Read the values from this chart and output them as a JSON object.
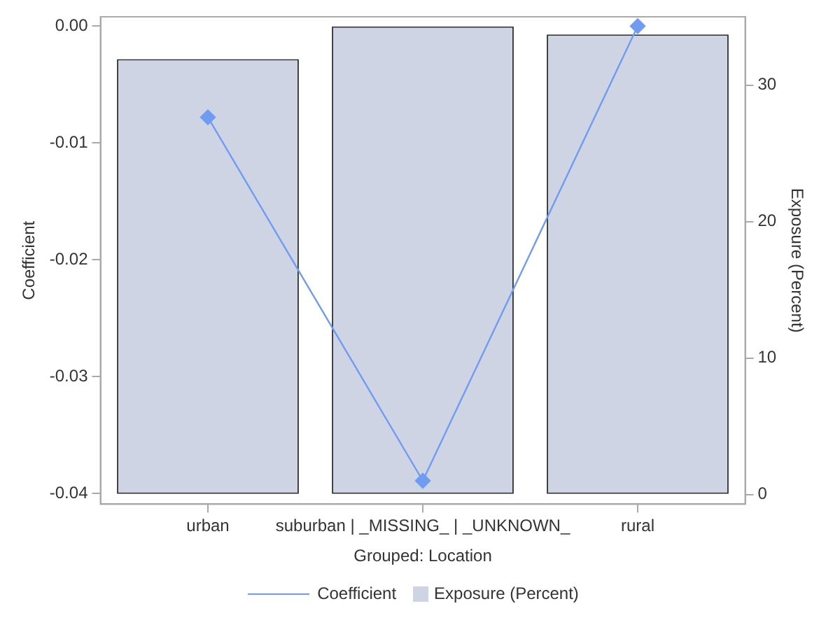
{
  "chart_data": {
    "type": "bar",
    "xlabel": "Grouped: Location",
    "ylabel": "Coefficient",
    "y2label": "Exposure (Percent)",
    "categories": [
      "urban",
      "suburban | _MISSING_ | _UNKNOWN_",
      "rural"
    ],
    "series": [
      {
        "name": "Coefficient",
        "type": "line",
        "color": "#6f9cf0",
        "values": [
          -0.0078,
          -0.0389,
          0.0
        ],
        "marker": "diamond"
      },
      {
        "name": "Exposure (Percent)",
        "type": "bar",
        "axis": "y2",
        "color": "#cfd4e4",
        "values": [
          31.9,
          34.3,
          33.7
        ]
      }
    ],
    "ylim": [
      -0.0409,
      0.0008
    ],
    "yticks": [
      {
        "value": -0.04,
        "label": "-0.04"
      },
      {
        "value": -0.03,
        "label": "-0.03"
      },
      {
        "value": -0.02,
        "label": "-0.02"
      },
      {
        "value": -0.01,
        "label": "-0.01"
      },
      {
        "value": 0,
        "label": "0.00"
      }
    ],
    "y2lim": [
      -0.7,
      35
    ],
    "y2ticks": [
      0,
      10,
      20,
      30
    ],
    "grid": false,
    "legend": "bottom"
  }
}
